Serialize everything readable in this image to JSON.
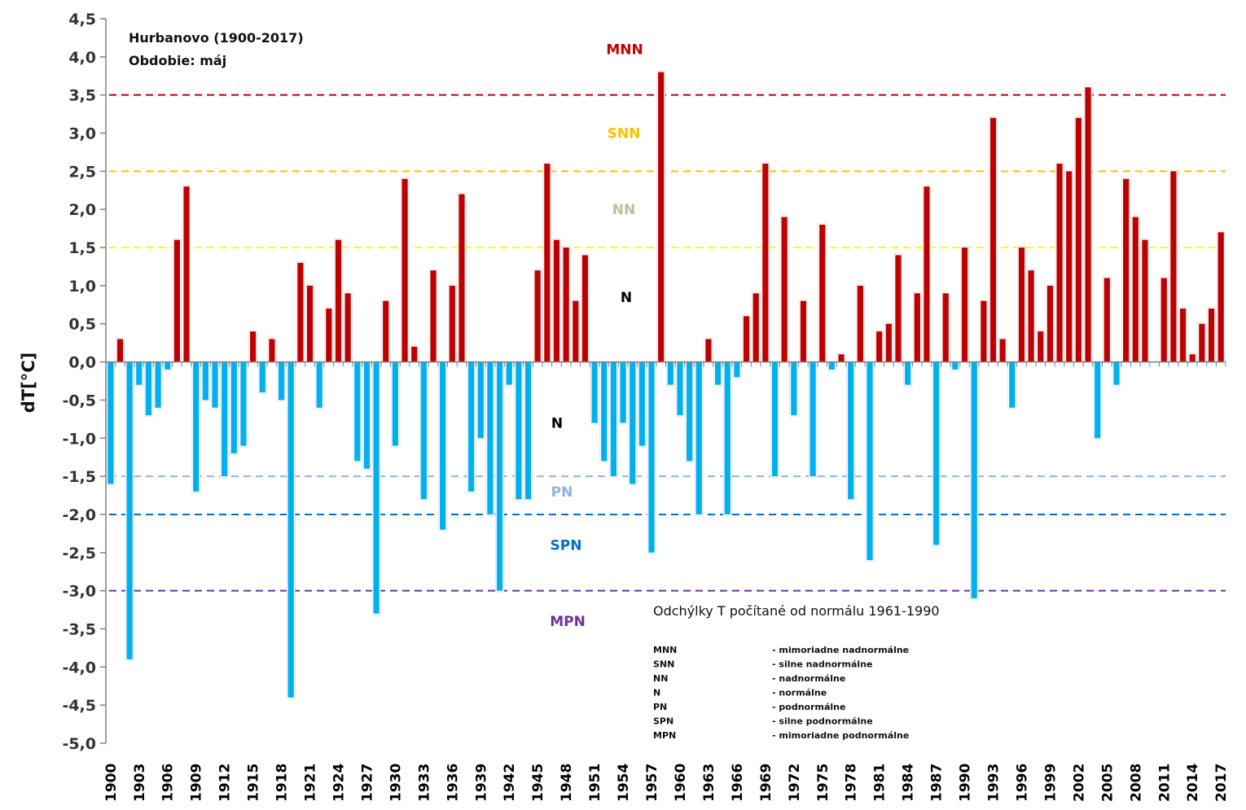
{
  "chart_data": {
    "type": "bar",
    "title": "Hurbanovo (1900-2017)",
    "subtitle": "Obdobie: máj",
    "xlabel": "",
    "ylabel": "dT[°C]",
    "ylim": [
      -5.0,
      4.5
    ],
    "ytick_step": 0.5,
    "ytick_labels": [
      "4,5",
      "4,0",
      "3,5",
      "3,0",
      "2,5",
      "2,0",
      "1,5",
      "1,0",
      "0,5",
      "0,0",
      "-0,5",
      "-1,0",
      "-1,5",
      "-2,0",
      "-2,5",
      "-3,0",
      "-3,5",
      "-4,0",
      "-4,5",
      "-5,0"
    ],
    "x_start_year": 1900,
    "x_end_year": 2017,
    "xtick_every": 3,
    "xtick_labels": [
      "1900",
      "1903",
      "1906",
      "1909",
      "1912",
      "1915",
      "1918",
      "1921",
      "1924",
      "1927",
      "1930",
      "1933",
      "1936",
      "1939",
      "1942",
      "1945",
      "1948",
      "1951",
      "1954",
      "1957",
      "1960",
      "1963",
      "1966",
      "1969",
      "1972",
      "1975",
      "1978",
      "1981",
      "1984",
      "1987",
      "1990",
      "1993",
      "1996",
      "1999",
      "2002",
      "2005",
      "2008",
      "2011",
      "2014",
      "2017"
    ],
    "values": [
      -1.6,
      0.3,
      -3.9,
      -0.3,
      -0.7,
      -0.6,
      -0.1,
      1.6,
      2.3,
      -1.7,
      -0.5,
      -0.6,
      -1.5,
      -1.2,
      -1.1,
      0.4,
      -0.4,
      0.3,
      -0.5,
      -4.4,
      1.3,
      1.0,
      -0.6,
      0.7,
      1.6,
      0.9,
      -1.3,
      -1.4,
      -3.3,
      0.8,
      -1.1,
      2.4,
      0.2,
      -1.8,
      1.2,
      -2.2,
      1.0,
      2.2,
      -1.7,
      -1.0,
      -2.0,
      -3.0,
      -0.3,
      -1.8,
      -1.8,
      1.2,
      2.6,
      1.6,
      1.5,
      0.8,
      1.4,
      -0.8,
      -1.3,
      -1.5,
      -0.8,
      -1.6,
      -1.1,
      -2.5,
      3.8,
      -0.3,
      -0.7,
      -1.3,
      -2.0,
      0.3,
      -0.3,
      -2.0,
      -0.2,
      0.6,
      0.9,
      2.6,
      -1.5,
      1.9,
      -0.7,
      0.8,
      -1.5,
      1.8,
      -0.1,
      0.1,
      -1.8,
      1.0,
      -2.6,
      0.4,
      0.5,
      1.4,
      -0.3,
      0.9,
      2.3,
      -2.4,
      0.9,
      -0.1,
      1.5,
      -3.1,
      0.8,
      3.2,
      0.3,
      -0.6,
      1.5,
      1.2,
      0.4,
      1.0,
      2.6,
      2.5,
      3.2,
      3.6,
      -1.0,
      1.1,
      -0.3,
      2.4,
      1.9,
      1.6,
      0.0,
      1.1,
      2.5,
      0.7,
      0.1,
      0.5,
      0.7,
      1.7
    ],
    "colors": {
      "positive": "#c00000",
      "negative": "#00b0f0"
    },
    "thresholds": [
      {
        "name": "MNN",
        "value": 3.5,
        "color": "#c00000",
        "label_value": 4.1
      },
      {
        "name": "SNN",
        "value": 2.5,
        "color": "#ffc000",
        "label_value": 3.0
      },
      {
        "name": "NN",
        "value": 1.5,
        "color": "#ffff00",
        "label_value": 2.0
      },
      {
        "name": "PN",
        "value": -1.5,
        "color": "#8db3e2",
        "label_value": -1.7
      },
      {
        "name": "SPN",
        "value": -2.0,
        "color": "#0070c0",
        "label_value": -2.4
      },
      {
        "name": "MPN",
        "value": -3.0,
        "color": "#7030a0",
        "label_value": -3.4
      }
    ],
    "zone_labels": [
      {
        "text": "MNN",
        "color": "#c00000",
        "value": 4.1
      },
      {
        "text": "SNN",
        "color": "#ffc000",
        "value": 3.0
      },
      {
        "text": "NN",
        "color": "#c4bd97",
        "value": 2.0
      },
      {
        "text": "N",
        "color": "#000000",
        "value": 0.85
      },
      {
        "text": "N",
        "color": "#000000",
        "value": -0.8
      },
      {
        "text": "PN",
        "color": "#8db3e2",
        "value": -1.7
      },
      {
        "text": "SPN",
        "color": "#0070c0",
        "value": -2.4
      },
      {
        "text": "MPN",
        "color": "#7030a0",
        "value": -3.4
      }
    ],
    "note": "Odchýlky T počítané od normálu 1961-1990",
    "legend": [
      {
        "code": "MNN",
        "desc": "- mimoriadne nadnormálne"
      },
      {
        "code": "SNN",
        "desc": "- silne nadnormálne"
      },
      {
        "code": "NN",
        "desc": "- nadnormálne"
      },
      {
        "code": "N",
        "desc": "- normálne"
      },
      {
        "code": "PN",
        "desc": "- podnormálne"
      },
      {
        "code": "SPN",
        "desc": "- silne podnormálne"
      },
      {
        "code": "MPN",
        "desc": "- mimoriadne podnormálne"
      }
    ],
    "grid": false,
    "legend_position": "bottom-right"
  }
}
